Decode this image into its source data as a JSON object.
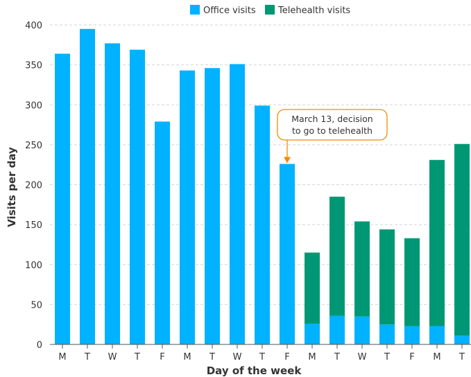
{
  "chart_data": {
    "type": "bar",
    "stacked": true,
    "xlabel": "Day of the week",
    "ylabel": "Visits per day",
    "ylim": [
      0,
      400
    ],
    "yticks": [
      0,
      50,
      100,
      150,
      200,
      250,
      300,
      350,
      400
    ],
    "grid": "horizontal dashed",
    "legend_position": "top-center",
    "categories": [
      "M",
      "T",
      "W",
      "T",
      "F",
      "M",
      "T",
      "W",
      "T",
      "F",
      "M",
      "T",
      "W",
      "T",
      "F",
      "M",
      "T"
    ],
    "series": [
      {
        "name": "Office visits",
        "color": "#00b2ff",
        "values": [
          364,
          395,
          377,
          369,
          279,
          343,
          346,
          351,
          299,
          226,
          26,
          36,
          35,
          25,
          23,
          23,
          11
        ]
      },
      {
        "name": "Telehealth visits",
        "color": "#009874",
        "values": [
          0,
          0,
          0,
          0,
          0,
          0,
          0,
          0,
          0,
          0,
          89,
          149,
          119,
          119,
          110,
          208,
          240
        ]
      }
    ],
    "annotation": {
      "lines": [
        "March 13, decision",
        "to go to telehealth"
      ],
      "category_index": 9,
      "color": "#f08c00"
    }
  }
}
